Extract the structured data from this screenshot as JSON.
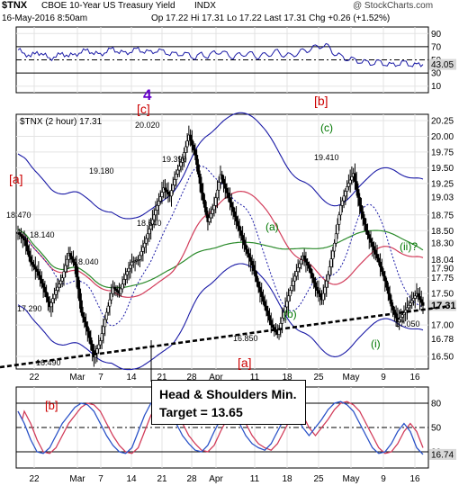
{
  "header": {
    "ticker": "$TNX",
    "description": "CBOE 10-Year US Treasury Yield",
    "exchange": "INDX",
    "datetime": "16-May-2016 8:50am",
    "quote": "Op 17.22  Hi 17.31  Lo 17.22  Last 17.31  Chg +0.26 (+1.52%)",
    "watermark": "@ StockCharts.com"
  },
  "main_panel": {
    "legend": "$TNX (2 hour) 17.31",
    "y_ticks": [
      "20.25",
      "20.00",
      "19.75",
      "19.50",
      "19.25",
      "19.03",
      "18.75",
      "18.50",
      "18.30",
      "18.04",
      "17.90",
      "17.75",
      "17.50",
      "17.31",
      "17.00",
      "16.78",
      "16.50"
    ]
  },
  "top_panel": {
    "y_ticks": [
      "90",
      "70",
      "50",
      "43.05",
      "30",
      "10"
    ]
  },
  "bottom_panel": {
    "y_ticks": [
      "80",
      "50",
      "20",
      "16.74"
    ]
  },
  "x_axis": {
    "top_labels": [
      "22",
      "Mar",
      "7",
      "14",
      "21",
      "28",
      "Apr",
      "11",
      "18",
      "25",
      "May",
      "9",
      "16"
    ],
    "bottom_labels": [
      "22",
      "Mar",
      "7",
      "14",
      "21",
      "28",
      "Apr",
      "11",
      "18",
      "25",
      "May",
      "9",
      "16"
    ]
  },
  "annotations": {
    "wave_4": "4",
    "wave_b_sq_top": "[b]",
    "wave_c_sq": "[c]",
    "wave_a_sq_left": "[a]",
    "wave_a_sq_bottom": "[a]",
    "wave_c": "(c)",
    "wave_a": "(a)",
    "wave_b": "(b)",
    "wave_i": "(i)",
    "wave_ii": "(ii)?",
    "wave_b_osc": "[b]",
    "lbl_20020": "20.020",
    "lbl_19390": "19.390",
    "lbl_19180": "19.180",
    "lbl_18640": "18.640",
    "lbl_18470": "18.470",
    "lbl_18140": "18.140",
    "lbl_18040": "18.040",
    "lbl_17290": "17.290",
    "lbl_16490": "16.490",
    "lbl_19410": "19.410",
    "lbl_16850": "16.850",
    "lbl_17050": "17.050",
    "hs_line1": "Head & Shoulders Min.",
    "hs_line2": "Target = 13.65"
  },
  "colors": {
    "accent_red": "#cc0000",
    "purple": "#6600cc",
    "green": "#007700",
    "ma_blue": "#1a1aa6",
    "ma_green": "#2a8a2a",
    "ma_red": "#d23c5a",
    "price": "#000000",
    "osc_blue": "#2a52c8",
    "osc_red": "#d23c5a"
  },
  "chart_data": {
    "type": "line",
    "title": "CBOE 10-Year US Treasury Yield",
    "ylabel": "",
    "ylim": [
      16.3,
      20.35
    ],
    "series": [
      {
        "name": "$TNX (2 hour)",
        "values": [
          18.47,
          18.35,
          18.0,
          17.85,
          17.6,
          17.29,
          17.55,
          17.75,
          18.14,
          17.95,
          17.2,
          16.9,
          16.49,
          16.75,
          17.2,
          17.6,
          17.5,
          17.8,
          18.0,
          18.04,
          18.3,
          18.6,
          18.9,
          19.18,
          19.05,
          19.4,
          19.65,
          20.02,
          19.7,
          19.1,
          18.64,
          18.9,
          19.39,
          19.1,
          18.8,
          18.5,
          18.2,
          17.95,
          17.6,
          17.3,
          17.0,
          16.85,
          17.2,
          17.55,
          17.85,
          18.1,
          17.9,
          17.6,
          17.4,
          17.8,
          18.3,
          18.9,
          19.2,
          19.41,
          18.9,
          18.5,
          18.25,
          18.0,
          17.7,
          17.3,
          17.05,
          17.2,
          17.35,
          17.5,
          17.31
        ]
      }
    ],
    "top_oscillator_values": [
      65,
      60,
      55,
      62,
      58,
      52,
      55,
      60,
      56,
      58,
      62,
      65,
      60,
      58,
      63,
      67,
      62,
      60,
      64,
      66,
      63,
      61,
      65,
      62,
      60,
      58,
      60,
      57,
      54,
      58,
      56,
      60,
      63,
      58,
      55,
      57,
      60,
      58,
      55,
      57,
      60,
      62,
      58,
      56,
      60,
      63,
      66,
      69,
      72,
      70,
      60,
      55,
      52,
      50,
      48,
      46,
      45,
      47,
      44,
      42,
      44,
      46,
      43,
      42,
      43.05
    ],
    "bottom_oscillator_values": [
      70,
      55,
      35,
      20,
      18,
      25,
      40,
      55,
      65,
      75,
      80,
      78,
      70,
      55,
      40,
      28,
      20,
      18,
      25,
      45,
      65,
      80,
      85,
      82,
      70,
      55,
      40,
      30,
      22,
      20,
      28,
      45,
      60,
      70,
      65,
      55,
      40,
      30,
      25,
      22,
      30,
      45,
      60,
      70,
      65,
      50,
      40,
      50,
      60,
      72,
      80,
      82,
      78,
      70,
      55,
      40,
      25,
      18,
      20,
      30,
      45,
      55,
      45,
      25,
      16.74
    ]
  }
}
